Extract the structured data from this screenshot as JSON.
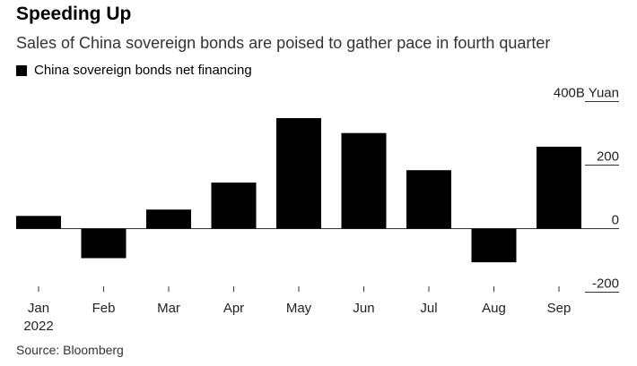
{
  "chart_data": {
    "type": "bar",
    "title": "Speeding Up",
    "subtitle": "Sales of China sovereign bonds are poised to gather pace in fourth quarter",
    "legend": [
      {
        "name": "China sovereign bonds net financing",
        "color": "#000000"
      }
    ],
    "legend_position": "top-left",
    "categories": [
      "Jan",
      "Feb",
      "Mar",
      "Apr",
      "May",
      "Jun",
      "Jul",
      "Aug",
      "Sep"
    ],
    "category_sublabels": [
      "2022",
      "",
      "",
      "",
      "",
      "",
      "",
      "",
      ""
    ],
    "series": [
      {
        "name": "China sovereign bonds net financing",
        "values": [
          40,
          -93,
          60,
          145,
          348,
          301,
          184,
          -106,
          258
        ]
      }
    ],
    "y_axis": {
      "ticks": [
        400,
        200,
        0,
        -200
      ],
      "tick_labels": [
        "400B Yuan",
        "200",
        "0",
        "-200"
      ],
      "ylim": [
        -210,
        410
      ],
      "position": "right"
    },
    "grid": true,
    "source": "Source: Bloomberg"
  }
}
